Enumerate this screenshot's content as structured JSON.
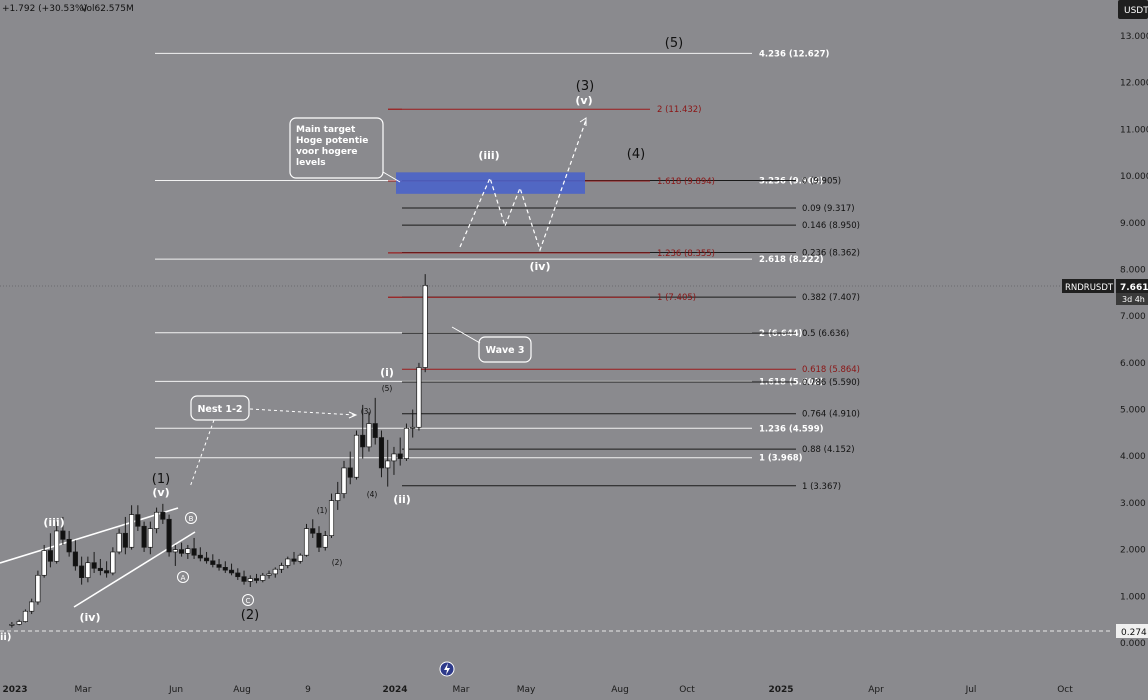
{
  "header": {
    "change": "+1.792 (+30.53%)",
    "volume": "Vol62.575M",
    "currency": "USDT"
  },
  "colors": {
    "background": "#8a8a8e",
    "up": "#ffffff",
    "down": "#111111",
    "fib_white": "#f2f2f2",
    "fib_black": "#1a1a1a",
    "fib_red": "#9c1b1b",
    "target_zone": "#4a63c9"
  },
  "price_tag": {
    "symbol": "RNDRUSDT",
    "price": "7.661",
    "timer": "3d 4h"
  },
  "low_tag": "0.274",
  "bottom_icon": "lightning-icon",
  "chart_data": {
    "type": "candlestick",
    "symbol": "RNDRUSDT",
    "timeframe_hint": "3d",
    "y_axis": {
      "ticks": [
        "13.000",
        "12.000",
        "11.000",
        "10.000",
        "9.000",
        "8.000",
        "7.000",
        "6.000",
        "5.000",
        "4.000",
        "3.000",
        "2.000",
        "1.000",
        "0.000"
      ],
      "ylim": [
        -0.2,
        13.8
      ]
    },
    "x_axis": {
      "ticks": [
        "2023",
        "Mar",
        "Jun",
        "Aug",
        "9",
        "2024",
        "Mar",
        "May",
        "Aug",
        "Oct",
        "2025",
        "Apr",
        "Jul",
        "Oct"
      ],
      "xlim": [
        "2022-12-28",
        "2025-11-10"
      ]
    },
    "candles": [
      {
        "date": "2022-12-29",
        "o": 0.38,
        "h": 0.45,
        "l": 0.33,
        "c": 0.4
      },
      {
        "date": "2023-01-05",
        "o": 0.4,
        "h": 0.5,
        "l": 0.38,
        "c": 0.46
      },
      {
        "date": "2023-01-11",
        "o": 0.46,
        "h": 0.72,
        "l": 0.44,
        "c": 0.68
      },
      {
        "date": "2023-01-17",
        "o": 0.68,
        "h": 0.95,
        "l": 0.62,
        "c": 0.88
      },
      {
        "date": "2023-01-23",
        "o": 0.88,
        "h": 1.55,
        "l": 0.82,
        "c": 1.45
      },
      {
        "date": "2023-01-29",
        "o": 1.45,
        "h": 2.1,
        "l": 1.4,
        "c": 1.98
      },
      {
        "date": "2023-02-04",
        "o": 1.98,
        "h": 2.35,
        "l": 1.62,
        "c": 1.75
      },
      {
        "date": "2023-02-10",
        "o": 1.75,
        "h": 2.6,
        "l": 1.7,
        "c": 2.4
      },
      {
        "date": "2023-02-16",
        "o": 2.4,
        "h": 2.7,
        "l": 2.1,
        "c": 2.22
      },
      {
        "date": "2023-02-22",
        "o": 2.22,
        "h": 2.4,
        "l": 1.85,
        "c": 1.95
      },
      {
        "date": "2023-02-28",
        "o": 1.95,
        "h": 2.2,
        "l": 1.55,
        "c": 1.65
      },
      {
        "date": "2023-03-06",
        "o": 1.65,
        "h": 1.85,
        "l": 1.25,
        "c": 1.4
      },
      {
        "date": "2023-03-12",
        "o": 1.4,
        "h": 1.85,
        "l": 1.3,
        "c": 1.72
      },
      {
        "date": "2023-03-18",
        "o": 1.72,
        "h": 1.95,
        "l": 1.5,
        "c": 1.6
      },
      {
        "date": "2023-03-24",
        "o": 1.6,
        "h": 1.8,
        "l": 1.45,
        "c": 1.55
      },
      {
        "date": "2023-03-30",
        "o": 1.55,
        "h": 1.75,
        "l": 1.4,
        "c": 1.5
      },
      {
        "date": "2023-04-05",
        "o": 1.5,
        "h": 2.05,
        "l": 1.45,
        "c": 1.95
      },
      {
        "date": "2023-04-11",
        "o": 1.95,
        "h": 2.45,
        "l": 1.9,
        "c": 2.35
      },
      {
        "date": "2023-04-17",
        "o": 2.35,
        "h": 2.7,
        "l": 1.9,
        "c": 2.05
      },
      {
        "date": "2023-04-23",
        "o": 2.05,
        "h": 2.95,
        "l": 2.0,
        "c": 2.75
      },
      {
        "date": "2023-04-29",
        "o": 2.75,
        "h": 2.95,
        "l": 2.4,
        "c": 2.5
      },
      {
        "date": "2023-05-05",
        "o": 2.5,
        "h": 2.6,
        "l": 1.95,
        "c": 2.05
      },
      {
        "date": "2023-05-11",
        "o": 2.05,
        "h": 2.6,
        "l": 1.9,
        "c": 2.45
      },
      {
        "date": "2023-05-17",
        "o": 2.45,
        "h": 2.9,
        "l": 2.35,
        "c": 2.8
      },
      {
        "date": "2023-05-23",
        "o": 2.8,
        "h": 2.98,
        "l": 2.55,
        "c": 2.65
      },
      {
        "date": "2023-05-29",
        "o": 2.65,
        "h": 2.75,
        "l": 1.85,
        "c": 1.95
      },
      {
        "date": "2023-06-04",
        "o": 1.95,
        "h": 2.1,
        "l": 1.65,
        "c": 2.0
      },
      {
        "date": "2023-06-10",
        "o": 2.0,
        "h": 2.15,
        "l": 1.85,
        "c": 1.92
      },
      {
        "date": "2023-06-16",
        "o": 1.92,
        "h": 2.1,
        "l": 1.8,
        "c": 2.02
      },
      {
        "date": "2023-06-22",
        "o": 2.02,
        "h": 2.25,
        "l": 1.8,
        "c": 1.88
      },
      {
        "date": "2023-06-28",
        "o": 1.88,
        "h": 2.05,
        "l": 1.75,
        "c": 1.82
      },
      {
        "date": "2023-07-04",
        "o": 1.82,
        "h": 1.95,
        "l": 1.7,
        "c": 1.76
      },
      {
        "date": "2023-07-10",
        "o": 1.76,
        "h": 1.9,
        "l": 1.62,
        "c": 1.68
      },
      {
        "date": "2023-07-16",
        "o": 1.68,
        "h": 1.8,
        "l": 1.55,
        "c": 1.62
      },
      {
        "date": "2023-07-22",
        "o": 1.62,
        "h": 1.75,
        "l": 1.5,
        "c": 1.56
      },
      {
        "date": "2023-07-28",
        "o": 1.56,
        "h": 1.7,
        "l": 1.45,
        "c": 1.5
      },
      {
        "date": "2023-08-03",
        "o": 1.5,
        "h": 1.6,
        "l": 1.35,
        "c": 1.42
      },
      {
        "date": "2023-08-09",
        "o": 1.42,
        "h": 1.55,
        "l": 1.25,
        "c": 1.32
      },
      {
        "date": "2023-08-15",
        "o": 1.32,
        "h": 1.45,
        "l": 1.2,
        "c": 1.38
      },
      {
        "date": "2023-08-21",
        "o": 1.38,
        "h": 1.48,
        "l": 1.28,
        "c": 1.34
      },
      {
        "date": "2023-08-27",
        "o": 1.34,
        "h": 1.5,
        "l": 1.3,
        "c": 1.45
      },
      {
        "date": "2023-09-02",
        "o": 1.45,
        "h": 1.55,
        "l": 1.38,
        "c": 1.48
      },
      {
        "date": "2023-09-08",
        "o": 1.48,
        "h": 1.62,
        "l": 1.4,
        "c": 1.58
      },
      {
        "date": "2023-09-14",
        "o": 1.58,
        "h": 1.72,
        "l": 1.5,
        "c": 1.66
      },
      {
        "date": "2023-09-20",
        "o": 1.66,
        "h": 1.85,
        "l": 1.6,
        "c": 1.8
      },
      {
        "date": "2023-09-26",
        "o": 1.8,
        "h": 1.95,
        "l": 1.68,
        "c": 1.75
      },
      {
        "date": "2023-10-02",
        "o": 1.75,
        "h": 1.92,
        "l": 1.7,
        "c": 1.88
      },
      {
        "date": "2023-10-08",
        "o": 1.88,
        "h": 2.55,
        "l": 1.85,
        "c": 2.45
      },
      {
        "date": "2023-10-14",
        "o": 2.45,
        "h": 2.65,
        "l": 2.25,
        "c": 2.35
      },
      {
        "date": "2023-10-20",
        "o": 2.35,
        "h": 2.5,
        "l": 1.95,
        "c": 2.05
      },
      {
        "date": "2023-10-26",
        "o": 2.05,
        "h": 2.4,
        "l": 1.98,
        "c": 2.3
      },
      {
        "date": "2023-11-01",
        "o": 2.3,
        "h": 3.2,
        "l": 2.25,
        "c": 3.05
      },
      {
        "date": "2023-11-07",
        "o": 3.05,
        "h": 3.45,
        "l": 2.85,
        "c": 3.2
      },
      {
        "date": "2023-11-13",
        "o": 3.2,
        "h": 3.9,
        "l": 3.1,
        "c": 3.75
      },
      {
        "date": "2023-11-19",
        "o": 3.75,
        "h": 4.1,
        "l": 3.4,
        "c": 3.55
      },
      {
        "date": "2023-11-25",
        "o": 3.55,
        "h": 4.55,
        "l": 3.5,
        "c": 4.45
      },
      {
        "date": "2023-12-01",
        "o": 4.45,
        "h": 5.1,
        "l": 3.95,
        "c": 4.2
      },
      {
        "date": "2023-12-07",
        "o": 4.2,
        "h": 4.95,
        "l": 4.1,
        "c": 4.7
      },
      {
        "date": "2023-12-13",
        "o": 4.7,
        "h": 5.25,
        "l": 4.25,
        "c": 4.4
      },
      {
        "date": "2023-12-19",
        "o": 4.4,
        "h": 4.55,
        "l": 3.55,
        "c": 3.75
      },
      {
        "date": "2023-12-25",
        "o": 3.75,
        "h": 4.35,
        "l": 3.35,
        "c": 3.9
      },
      {
        "date": "2023-12-31",
        "o": 3.9,
        "h": 4.2,
        "l": 3.6,
        "c": 4.05
      },
      {
        "date": "2024-01-06",
        "o": 4.05,
        "h": 4.4,
        "l": 3.8,
        "c": 3.95
      },
      {
        "date": "2024-01-12",
        "o": 3.95,
        "h": 4.7,
        "l": 3.9,
        "c": 4.6
      },
      {
        "date": "2024-01-18",
        "o": 4.6,
        "h": 5.0,
        "l": 4.4,
        "c": 4.62
      },
      {
        "date": "2024-01-24",
        "o": 4.62,
        "h": 6.0,
        "l": 4.55,
        "c": 5.9
      },
      {
        "date": "2024-01-30",
        "o": 5.9,
        "h": 7.9,
        "l": 5.8,
        "c": 7.66
      }
    ],
    "fib_levels": [
      {
        "label": "4.236 (12.627)",
        "value": 12.627,
        "color": "white"
      },
      {
        "label": "3.236 (9.904)",
        "value": 9.904,
        "color": "white"
      },
      {
        "label": "2.618 (8.222)",
        "value": 8.222,
        "color": "white"
      },
      {
        "label": "2 (6.644)",
        "value": 6.644,
        "color": "white"
      },
      {
        "label": "1.618 (5.602)",
        "value": 5.602,
        "color": "white"
      },
      {
        "label": "1.236 (4.599)",
        "value": 4.599,
        "color": "white"
      },
      {
        "label": "1 (3.968)",
        "value": 3.968,
        "color": "white"
      },
      {
        "label": "0 (9.905)",
        "value": 9.905,
        "color": "black"
      },
      {
        "label": "0.09 (9.317)",
        "value": 9.317,
        "color": "black"
      },
      {
        "label": "0.146 (8.950)",
        "value": 8.95,
        "color": "black"
      },
      {
        "label": "0.236 (8.362)",
        "value": 8.362,
        "color": "black"
      },
      {
        "label": "0.382 (7.407)",
        "value": 7.407,
        "color": "black"
      },
      {
        "label": "0.5 (6.636)",
        "value": 6.636,
        "color": "black"
      },
      {
        "label": "0.786 (5.590)",
        "value": 5.59,
        "color": "black"
      },
      {
        "label": "0.764 (4.910)",
        "value": 4.91,
        "color": "black"
      },
      {
        "label": "0.88 (4.152)",
        "value": 4.152,
        "color": "black"
      },
      {
        "label": "1 (3.367)",
        "value": 3.367,
        "color": "black"
      },
      {
        "label": "2 (11.432)",
        "value": 11.432,
        "color": "red"
      },
      {
        "label": "1.618 (9.894)",
        "value": 9.894,
        "color": "red"
      },
      {
        "label": "1.236 (8.355)",
        "value": 8.355,
        "color": "red"
      },
      {
        "label": "1 (7.405)",
        "value": 7.405,
        "color": "red"
      },
      {
        "label": "0.618 (5.864)",
        "value": 5.864,
        "color": "red"
      }
    ],
    "wave_labels": {
      "major": [
        "(1)",
        "(2)",
        "(3)",
        "(4)",
        "(5)"
      ],
      "minor_prev": [
        "(iii)",
        "(iv)",
        "(v)"
      ],
      "minor_cur": [
        "(i)",
        "(ii)",
        "(iii)",
        "(iv)",
        "(v)"
      ],
      "sub_small": [
        "(1)",
        "(2)",
        "(3)",
        "(4)",
        "(5)"
      ],
      "abc": [
        "A",
        "B",
        "C"
      ],
      "ii_edge": "ii)"
    },
    "annotations": [
      {
        "text": "Main target\nHoge potentie\nvoor hogere\nlevels"
      },
      {
        "text": "Nest 1-2"
      },
      {
        "text": "Wave 3"
      }
    ]
  }
}
